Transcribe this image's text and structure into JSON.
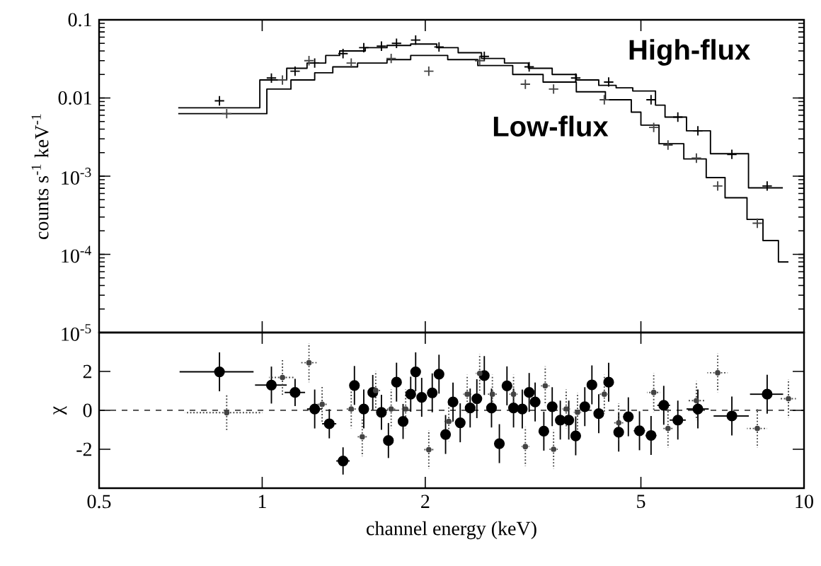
{
  "chart_data": [
    {
      "type": "step",
      "ylabel": "counts s$^{-1}$ keV$^{-1}$",
      "log": "xy",
      "xlim": [
        0.5,
        10
      ],
      "ylim": [
        1e-05,
        0.1
      ],
      "xticks": [
        0.5,
        1,
        2,
        5,
        10
      ],
      "yticks": [
        {
          "value": 1e-05,
          "label": "10$^{-5}$"
        },
        {
          "value": 0.0001,
          "label": "10$^{-4}$"
        },
        {
          "value": 0.001,
          "label": "10$^{-3}$"
        },
        0.01,
        0.1
      ],
      "tick_labels": "y",
      "grid": false,
      "legend": "top right",
      "series": [
        {
          "name": "High-flux",
          "color": "#000000",
          "line_style": "solid",
          "x": [
            0.7,
            0.99,
            1.11,
            1.21,
            1.31,
            1.39,
            1.55,
            1.7,
            1.88,
            2.1,
            2.3,
            2.54,
            2.8,
            3.1,
            3.43,
            3.8,
            4.18,
            4.5,
            4.83,
            5.32,
            5.54,
            6.07,
            6.72,
            7.9,
            9.14
          ],
          "values": [
            0.0075,
            0.017,
            0.024,
            0.028,
            0.035,
            0.04,
            0.044,
            0.047,
            0.049,
            0.044,
            0.038,
            0.032,
            0.028,
            0.024,
            0.02,
            0.017,
            0.0145,
            0.0135,
            0.0123,
            0.0081,
            0.0057,
            0.0038,
            0.00194,
            0.00071,
            0.00071
          ]
        },
        {
          "name": "Low-flux",
          "color": "#000000",
          "line_style": "solid",
          "x": [
            0.7,
            1.02,
            1.13,
            1.25,
            1.35,
            1.5,
            1.7,
            1.88,
            2.2,
            2.5,
            2.9,
            3.3,
            3.8,
            4.3,
            4.8,
            5.0,
            5.4,
            6.0,
            6.6,
            7.15,
            7.85,
            8.4,
            8.97,
            9.36
          ],
          "values": [
            0.0063,
            0.013,
            0.017,
            0.021,
            0.025,
            0.028,
            0.031,
            0.035,
            0.031,
            0.026,
            0.02,
            0.016,
            0.012,
            0.0095,
            0.0066,
            0.0045,
            0.0026,
            0.00166,
            0.00096,
            0.00053,
            0.00028,
            0.00015,
            8e-05,
            8e-05
          ]
        },
        {
          "type": "scatter",
          "marker": "cross",
          "color": "#000000",
          "line_style": "solid",
          "x": [
            0.834,
            1.04,
            1.15,
            1.25,
            1.41,
            1.54,
            1.66,
            1.77,
            1.92,
            2.12,
            2.57,
            3.11,
            3.79,
            4.36,
            5.22,
            5.85,
            6.37,
            7.36,
            8.55
          ],
          "values": [
            0.0092,
            0.018,
            0.022,
            0.028,
            0.037,
            0.044,
            0.046,
            0.05,
            0.055,
            0.045,
            0.034,
            0.025,
            0.018,
            0.016,
            0.0095,
            0.0057,
            0.0038,
            0.0019,
            0.00075
          ]
        },
        {
          "type": "scatter",
          "marker": "cross",
          "color": "#444444",
          "line_style": "dotted",
          "x": [
            0.86,
            1.09,
            1.22,
            1.46,
            1.73,
            2.03,
            2.52,
            3.06,
            3.45,
            4.28,
            5.28,
            5.61,
            6.33,
            6.93,
            8.2
          ],
          "values": [
            0.0063,
            0.017,
            0.03,
            0.028,
            0.032,
            0.022,
            0.03,
            0.015,
            0.013,
            0.0095,
            0.0042,
            0.0025,
            0.0017,
            0.00075,
            0.00025
          ]
        }
      ]
    },
    {
      "type": "scatter",
      "xlabel": "channel energy (keV)",
      "ylabel": "χ",
      "log": "x",
      "xlim": [
        0.5,
        10
      ],
      "ylim": [
        -4,
        4
      ],
      "xticks": [
        0.5,
        1,
        2,
        5,
        10
      ],
      "yticks": [
        -2,
        0,
        2
      ],
      "grid": false,
      "legend": false,
      "ref_lines": [
        {
          "axis": "y",
          "value": 0,
          "line_style": "dashed",
          "color": "#000000"
        }
      ],
      "series": [
        {
          "type": "scatter",
          "marker": "circle",
          "color": "#000000",
          "line_style": "solid",
          "x": [
            0.834,
            1.04,
            1.15,
            1.25,
            1.33,
            1.41,
            1.48,
            1.54,
            1.6,
            1.66,
            1.71,
            1.77,
            1.82,
            1.88,
            1.92,
            1.97,
            2.06,
            2.12,
            2.18,
            2.25,
            2.32,
            2.42,
            2.49,
            2.57,
            2.65,
            2.74,
            2.83,
            2.91,
            3.02,
            3.11,
            3.19,
            3.31,
            3.43,
            3.55,
            3.68,
            3.79,
            3.94,
            4.06,
            4.18,
            4.36,
            4.55,
            4.74,
            4.97,
            5.22,
            5.51,
            5.85,
            6.37,
            7.36,
            8.55
          ],
          "values": [
            1.98,
            1.3,
            0.92,
            0.07,
            -0.69,
            -2.6,
            1.28,
            0.07,
            0.92,
            -0.1,
            -1.55,
            1.45,
            -0.57,
            0.83,
            1.98,
            0.67,
            0.9,
            1.86,
            -1.24,
            0.43,
            -0.64,
            0.12,
            0.6,
            1.79,
            0.12,
            -1.71,
            1.26,
            0.12,
            0.07,
            0.92,
            0.43,
            -1.07,
            0.19,
            -0.5,
            -0.5,
            -1.31,
            0.19,
            1.31,
            -0.17,
            1.45,
            -1.12,
            -0.33,
            -1.05,
            -1.29,
            0.26,
            -0.5,
            0.07,
            -0.29,
            0.83
          ],
          "xerrors": [
            0.13,
            0.07,
            0.05,
            0.04,
            0.04,
            0.04,
            0.03,
            0.03,
            0.03,
            0.03,
            0.03,
            0.03,
            0.03,
            0.03,
            0.03,
            0.03,
            0.04,
            0.04,
            0.04,
            0.04,
            0.04,
            0.04,
            0.04,
            0.05,
            0.05,
            0.05,
            0.05,
            0.03,
            0.03,
            0.05,
            0.05,
            0.06,
            0.06,
            0.04,
            0.04,
            0.06,
            0.07,
            0.07,
            0.07,
            0.08,
            0.09,
            0.1,
            0.12,
            0.12,
            0.15,
            0.2,
            0.3,
            0.55,
            0.6
          ],
          "errors": [
            1.0,
            0.95,
            0.7,
            1.0,
            0.75,
            0.7,
            1.0,
            1.0,
            0.9,
            0.9,
            0.9,
            1.0,
            0.9,
            0.9,
            1.0,
            1.0,
            1.0,
            1.0,
            1.0,
            1.0,
            1.0,
            1.0,
            1.0,
            1.0,
            1.0,
            1.0,
            1.0,
            1.0,
            1.0,
            1.0,
            1.0,
            1.0,
            1.0,
            1.0,
            1.0,
            1.0,
            1.0,
            1.0,
            1.0,
            1.0,
            1.0,
            1.0,
            1.0,
            1.0,
            1.0,
            1.0,
            1.0,
            1.0,
            1.0
          ]
        },
        {
          "type": "scatter",
          "marker": "circle",
          "color": "#444444",
          "line_style": "dotted",
          "x": [
            0.86,
            1.09,
            1.22,
            1.29,
            1.46,
            1.53,
            1.62,
            1.73,
            1.84,
            2.03,
            2.21,
            2.39,
            2.52,
            2.66,
            2.91,
            3.06,
            3.33,
            3.45,
            3.64,
            3.82,
            4.28,
            4.55,
            5.28,
            5.61,
            6.33,
            6.93,
            8.2,
            9.36
          ],
          "values": [
            -0.12,
            1.69,
            2.45,
            0.31,
            0.07,
            -1.36,
            1.02,
            0.07,
            0.07,
            -2.02,
            -0.57,
            0.83,
            1.9,
            0.83,
            0.83,
            -1.86,
            1.26,
            -2.0,
            0.07,
            -0.1,
            0.83,
            -0.64,
            0.92,
            -0.93,
            0.5,
            1.93,
            -0.93,
            0.6
          ],
          "xerrors": [
            0.14,
            0.06,
            0.04,
            0.03,
            0.03,
            0.03,
            0.03,
            0.03,
            0.03,
            0.04,
            0.04,
            0.04,
            0.04,
            0.05,
            0.05,
            0.05,
            0.06,
            0.06,
            0.06,
            0.06,
            0.08,
            0.09,
            0.15,
            0.15,
            0.25,
            0.3,
            0.35,
            0.3
          ],
          "errors": [
            0.9,
            0.9,
            1.0,
            0.9,
            1.0,
            1.0,
            1.0,
            1.0,
            1.0,
            1.0,
            1.0,
            1.0,
            1.0,
            1.0,
            1.0,
            1.0,
            1.0,
            1.0,
            1.0,
            1.0,
            1.0,
            1.0,
            1.0,
            1.0,
            1.0,
            1.0,
            1.0,
            1.0
          ]
        }
      ]
    }
  ]
}
